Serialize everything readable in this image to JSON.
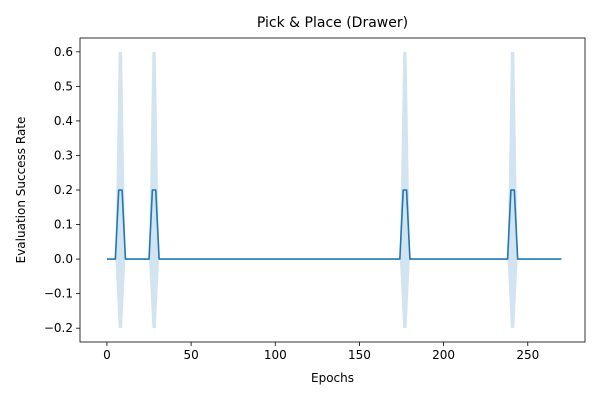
{
  "chart_data": {
    "type": "line",
    "title": "Pick & Place (Drawer)",
    "xlabel": "Epochs",
    "ylabel": "Evaluation Success Rate",
    "xlim": [
      -16,
      284
    ],
    "ylim": [
      -0.24,
      0.64
    ],
    "xticks": [
      0,
      50,
      100,
      150,
      200,
      250
    ],
    "yticks": [
      -0.2,
      -0.1,
      0.0,
      0.1,
      0.2,
      0.3,
      0.4,
      0.5,
      0.6
    ],
    "xtick_labels": [
      "0",
      "50",
      "100",
      "150",
      "200",
      "250"
    ],
    "ytick_labels": [
      "−0.2",
      "−0.1",
      "0.0",
      "0.1",
      "0.2",
      "0.3",
      "0.4",
      "0.5",
      "0.6"
    ],
    "grid": false,
    "series": [
      {
        "color": "#1f77b4",
        "band_color": "#1f77b4",
        "x": [
          0,
          5,
          7,
          9,
          11,
          25,
          27,
          29,
          31,
          174,
          176,
          178,
          180,
          238,
          240,
          242,
          244,
          270
        ],
        "y": [
          0,
          0,
          0.2,
          0.2,
          0,
          0,
          0.2,
          0.2,
          0,
          0,
          0.2,
          0.2,
          0,
          0,
          0.2,
          0.2,
          0,
          0
        ],
        "upper": [
          0,
          0,
          0.6,
          0.6,
          0,
          0,
          0.6,
          0.6,
          0,
          0,
          0.6,
          0.6,
          0,
          0,
          0.6,
          0.6,
          0,
          0
        ],
        "lower": [
          0,
          0,
          -0.2,
          -0.2,
          0,
          0,
          -0.2,
          -0.2,
          0,
          0,
          -0.2,
          -0.2,
          0,
          0,
          -0.2,
          -0.2,
          0,
          0
        ]
      }
    ]
  }
}
